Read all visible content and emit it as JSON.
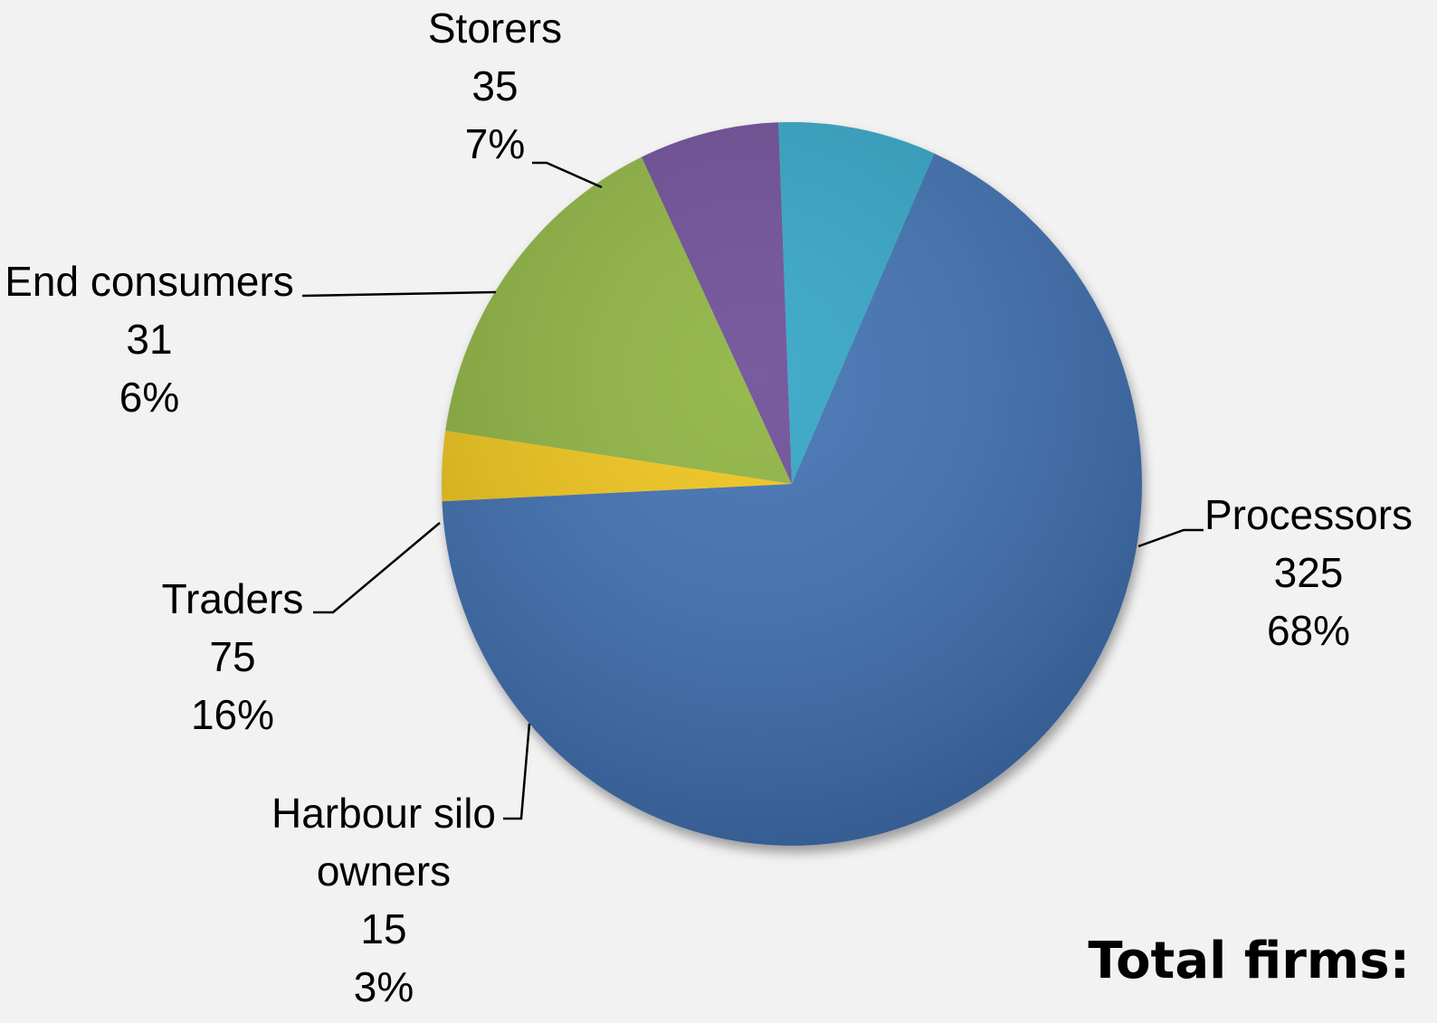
{
  "chart_data": {
    "type": "pie",
    "title": "",
    "slices": [
      {
        "label": "Processors",
        "label_lines": [
          "Processors"
        ],
        "value": 325,
        "percent": "68%",
        "color": "#3a6db0"
      },
      {
        "label": "Harbour silo owners",
        "label_lines": [
          "Harbour silo",
          "owners"
        ],
        "value": 15,
        "percent": "3%",
        "color": "#f0c419"
      },
      {
        "label": "Traders",
        "label_lines": [
          "Traders"
        ],
        "value": 75,
        "percent": "16%",
        "color": "#8cb23e"
      },
      {
        "label": "End consumers",
        "label_lines": [
          "End consumers"
        ],
        "value": 31,
        "percent": "6%",
        "color": "#6a4a95"
      },
      {
        "label": "Storers",
        "label_lines": [
          "Storers"
        ],
        "value": 35,
        "percent": "7%",
        "color": "#2fa3c4"
      }
    ]
  },
  "footer": {
    "total_label": "Total firms:"
  }
}
